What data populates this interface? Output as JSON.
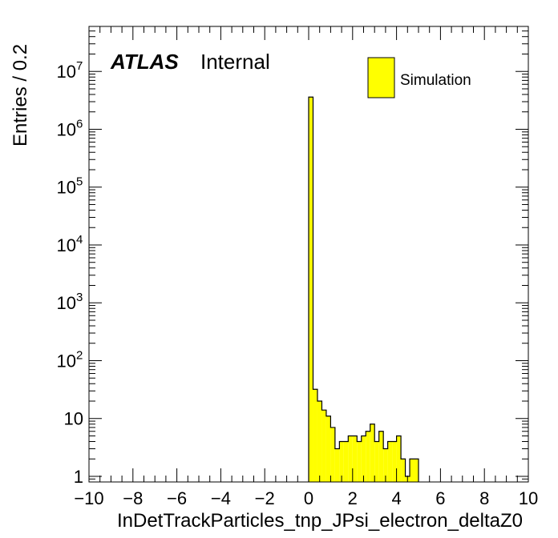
{
  "chart_data": {
    "type": "bar",
    "style": "histogram",
    "xlabel": "InDetTrackParticles_tnp_JPsi_electron_deltaZ0",
    "ylabel": "Entries / 0.2",
    "atlas_label": "ATLAS",
    "atlas_status": "Internal",
    "xlim": [
      -10,
      10
    ],
    "ylim": [
      0.8,
      60000000
    ],
    "yscale": "log",
    "x_ticks": [
      -10,
      -8,
      -6,
      -4,
      -2,
      0,
      2,
      4,
      6,
      8,
      10
    ],
    "x_tick_labels": [
      "−10",
      "−8",
      "−6",
      "−4",
      "−2",
      "0",
      "2",
      "4",
      "6",
      "8",
      "10"
    ],
    "y_ticks": [
      {
        "value": 1,
        "base": "1",
        "exp": ""
      },
      {
        "value": 10,
        "base": "10",
        "exp": ""
      },
      {
        "value": 100,
        "base": "10",
        "exp": "2"
      },
      {
        "value": 1000,
        "base": "10",
        "exp": "3"
      },
      {
        "value": 10000,
        "base": "10",
        "exp": "4"
      },
      {
        "value": 100000,
        "base": "10",
        "exp": "5"
      },
      {
        "value": 1000000,
        "base": "10",
        "exp": "6"
      },
      {
        "value": 10000000,
        "base": "10",
        "exp": "7"
      }
    ],
    "grid": false,
    "legend_position": "top-right",
    "series": [
      {
        "name": "Simulation",
        "color": "#ffff00",
        "edge_color": "#000000",
        "bin_width": 0.2,
        "bins": [
          {
            "x0": 0.0,
            "value": 3600000
          },
          {
            "x0": 0.2,
            "value": 32
          },
          {
            "x0": 0.4,
            "value": 20
          },
          {
            "x0": 0.6,
            "value": 14
          },
          {
            "x0": 0.8,
            "value": 11
          },
          {
            "x0": 1.0,
            "value": 7
          },
          {
            "x0": 1.2,
            "value": 3
          },
          {
            "x0": 1.4,
            "value": 4
          },
          {
            "x0": 1.6,
            "value": 4
          },
          {
            "x0": 1.8,
            "value": 5
          },
          {
            "x0": 2.0,
            "value": 5
          },
          {
            "x0": 2.2,
            "value": 4
          },
          {
            "x0": 2.4,
            "value": 5
          },
          {
            "x0": 2.6,
            "value": 6
          },
          {
            "x0": 2.8,
            "value": 8
          },
          {
            "x0": 3.0,
            "value": 4
          },
          {
            "x0": 3.2,
            "value": 6
          },
          {
            "x0": 3.4,
            "value": 3
          },
          {
            "x0": 3.6,
            "value": 4
          },
          {
            "x0": 3.8,
            "value": 4
          },
          {
            "x0": 4.0,
            "value": 5
          },
          {
            "x0": 4.2,
            "value": 2
          },
          {
            "x0": 4.4,
            "value": 1
          },
          {
            "x0": 4.6,
            "value": 2
          },
          {
            "x0": 4.8,
            "value": 2
          }
        ]
      }
    ]
  }
}
